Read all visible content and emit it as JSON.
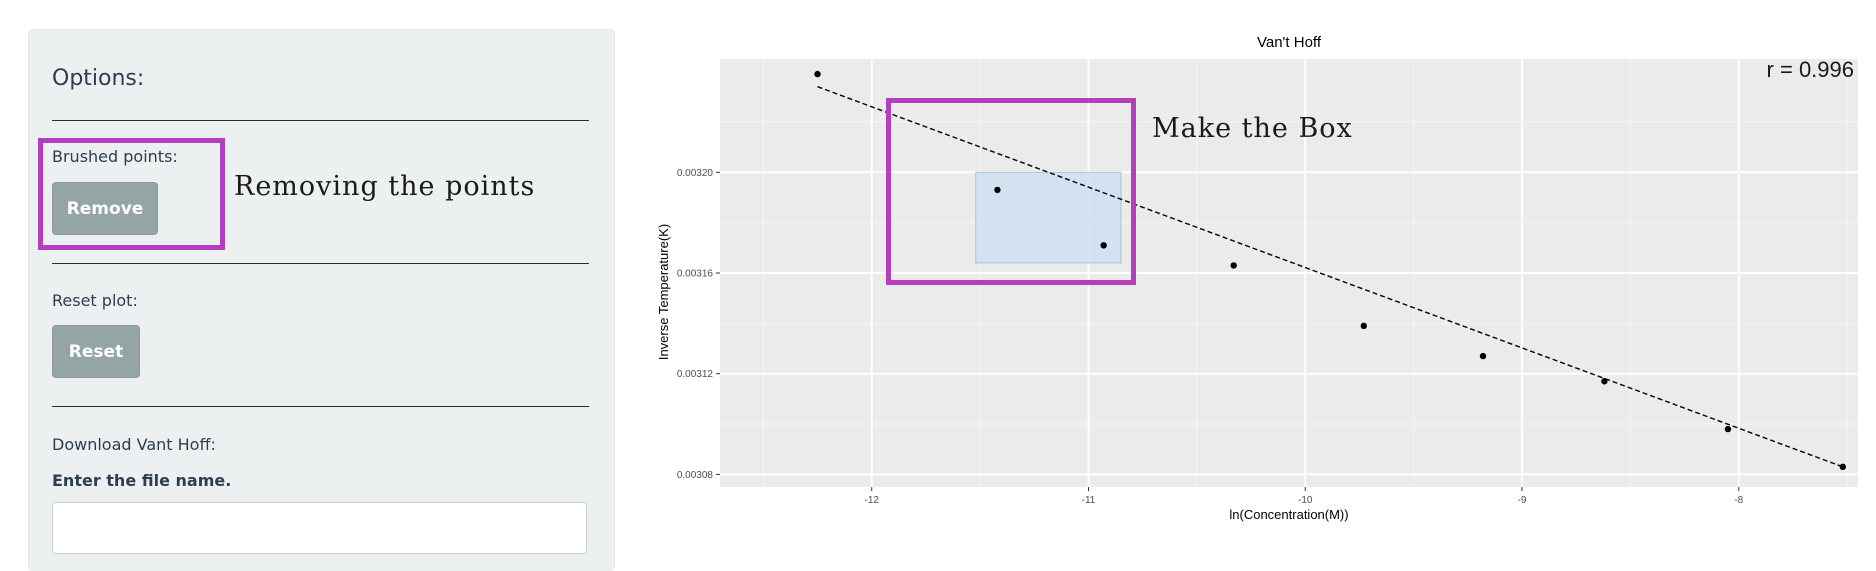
{
  "options": {
    "title": "Options:",
    "brushed_label": "Brushed points:",
    "remove_label": "Remove",
    "reset_plot_label": "Reset plot:",
    "reset_label": "Reset",
    "download_label": "Download Vant Hoff:",
    "filename_label": "Enter the file name.",
    "filename_value": "",
    "filename_placeholder": ""
  },
  "annotations": {
    "remove_note": "Removing the points",
    "box_note": "Make the Box",
    "highlight_color": "#b43fbe"
  },
  "chart_data": {
    "type": "scatter",
    "title": "Van't Hoff",
    "xlabel": "ln(Concentration(M))",
    "ylabel": "Inverse Temperature(K)",
    "xlim": [
      -12.7,
      -7.45
    ],
    "ylim": [
      0.003075,
      0.003245
    ],
    "xticks": [
      -12,
      -11,
      -10,
      -9,
      -8
    ],
    "yticks": [
      0.00308,
      0.00312,
      0.00316,
      0.0032
    ],
    "xtick_labels": [
      "-12",
      "-11",
      "-10",
      "-9",
      "-8"
    ],
    "ytick_labels": [
      "0.00308",
      "0.00312",
      "0.00316",
      "0.00320"
    ],
    "points": [
      {
        "x": -12.25,
        "y": 0.003239
      },
      {
        "x": -11.42,
        "y": 0.003193
      },
      {
        "x": -10.93,
        "y": 0.003171
      },
      {
        "x": -10.33,
        "y": 0.003163
      },
      {
        "x": -9.73,
        "y": 0.003139
      },
      {
        "x": -9.18,
        "y": 0.003127
      },
      {
        "x": -8.62,
        "y": 0.003117
      },
      {
        "x": -8.05,
        "y": 0.003098
      },
      {
        "x": -7.52,
        "y": 0.003083
      }
    ],
    "fit_line": {
      "x": [
        -12.25,
        -7.52
      ],
      "y": [
        0.003234,
        0.003083
      ],
      "style": "dashed"
    },
    "brush": {
      "x": [
        -11.52,
        -10.85
      ],
      "y": [
        0.003164,
        0.0032
      ]
    },
    "annotation": "r =  0.996",
    "grid": true,
    "panel_color": "#ebebeb",
    "brush_color": "#cfe0f2"
  }
}
